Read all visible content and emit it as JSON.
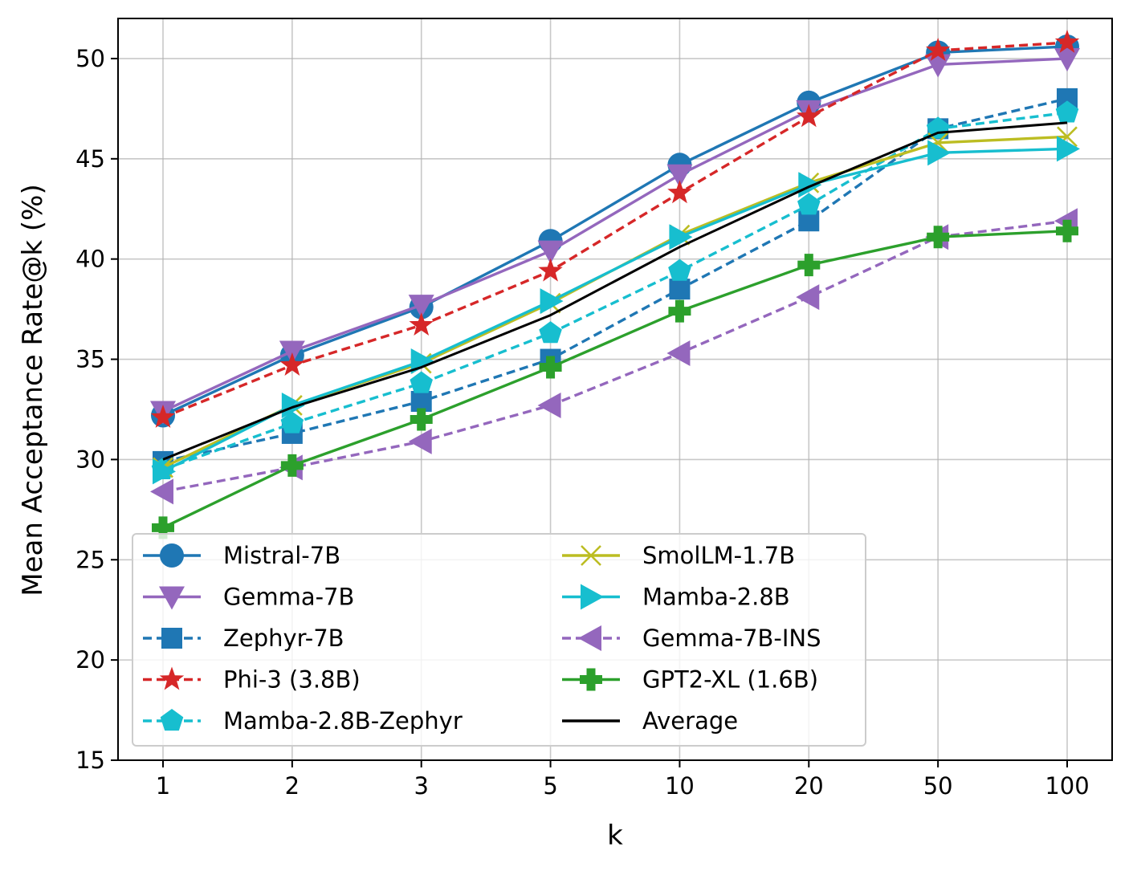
{
  "chart_data": {
    "type": "line",
    "title": "",
    "xlabel": "k",
    "ylabel": "Mean Acceptance Rate@k (%)",
    "categories": [
      "1",
      "2",
      "3",
      "5",
      "10",
      "20",
      "50",
      "100"
    ],
    "ylim": [
      15,
      52
    ],
    "yticks": [
      15,
      20,
      25,
      30,
      35,
      40,
      45,
      50
    ],
    "grid": true,
    "legend_position": "lower-left",
    "series": [
      {
        "name": "Mistral-7B",
        "color": "#1f77b4",
        "dash": "solid",
        "marker": "circle",
        "values": [
          32.2,
          35.2,
          37.6,
          40.9,
          44.7,
          47.8,
          50.3,
          50.6
        ]
      },
      {
        "name": "Gemma-7B",
        "color": "#9467bd",
        "dash": "solid",
        "marker": "triangle-down",
        "values": [
          32.4,
          35.4,
          37.7,
          40.4,
          44.2,
          47.4,
          49.7,
          50.0
        ]
      },
      {
        "name": "Zephyr-7B",
        "color": "#1f77b4",
        "dash": "dashed",
        "marker": "square",
        "values": [
          29.9,
          31.3,
          32.9,
          35.0,
          38.5,
          41.9,
          46.5,
          48.0
        ]
      },
      {
        "name": "Phi-3 (3.8B)",
        "color": "#d62728",
        "dash": "dashed",
        "marker": "star",
        "values": [
          32.1,
          34.7,
          36.7,
          39.4,
          43.3,
          47.1,
          50.4,
          50.8
        ]
      },
      {
        "name": "Mamba-2.8B-Zephyr",
        "color": "#17becf",
        "dash": "dashed",
        "marker": "pentagon",
        "values": [
          29.5,
          31.8,
          33.8,
          36.3,
          39.4,
          42.7,
          46.5,
          47.3
        ]
      },
      {
        "name": "SmolLM-1.7B",
        "color": "#bcbd22",
        "dash": "solid",
        "marker": "x",
        "values": [
          29.6,
          32.7,
          34.8,
          37.8,
          41.2,
          43.8,
          45.8,
          46.1
        ]
      },
      {
        "name": "Mamba-2.8B",
        "color": "#17becf",
        "dash": "solid",
        "marker": "triangle-right",
        "values": [
          29.4,
          32.7,
          34.9,
          37.9,
          41.1,
          43.7,
          45.3,
          45.5
        ]
      },
      {
        "name": "Gemma-7B-INS",
        "color": "#9467bd",
        "dash": "dashed",
        "marker": "triangle-left",
        "values": [
          28.4,
          29.6,
          30.9,
          32.7,
          35.3,
          38.1,
          41.1,
          41.9
        ]
      },
      {
        "name": "GPT2-XL (1.6B)",
        "color": "#2ca02c",
        "dash": "solid",
        "marker": "plus-filled",
        "values": [
          26.6,
          29.7,
          32.0,
          34.6,
          37.4,
          39.7,
          41.1,
          41.4
        ]
      },
      {
        "name": "Average",
        "color": "#000000",
        "dash": "solid",
        "marker": "none",
        "values": [
          30.0,
          32.6,
          34.6,
          37.2,
          40.6,
          43.6,
          46.3,
          46.8
        ]
      }
    ]
  }
}
